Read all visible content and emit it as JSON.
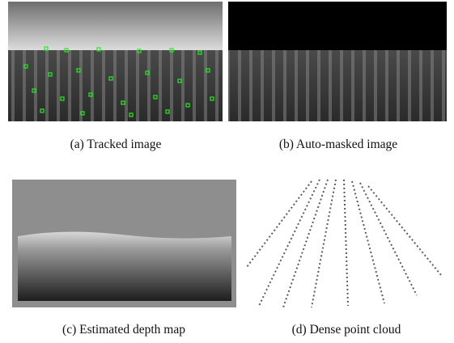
{
  "panels": [
    {
      "caption": "(a)  Tracked image"
    },
    {
      "caption": "(b)  Auto-masked image"
    },
    {
      "caption": "(c)  Estimated depth map"
    },
    {
      "caption": "(d)  Dense point cloud"
    }
  ]
}
